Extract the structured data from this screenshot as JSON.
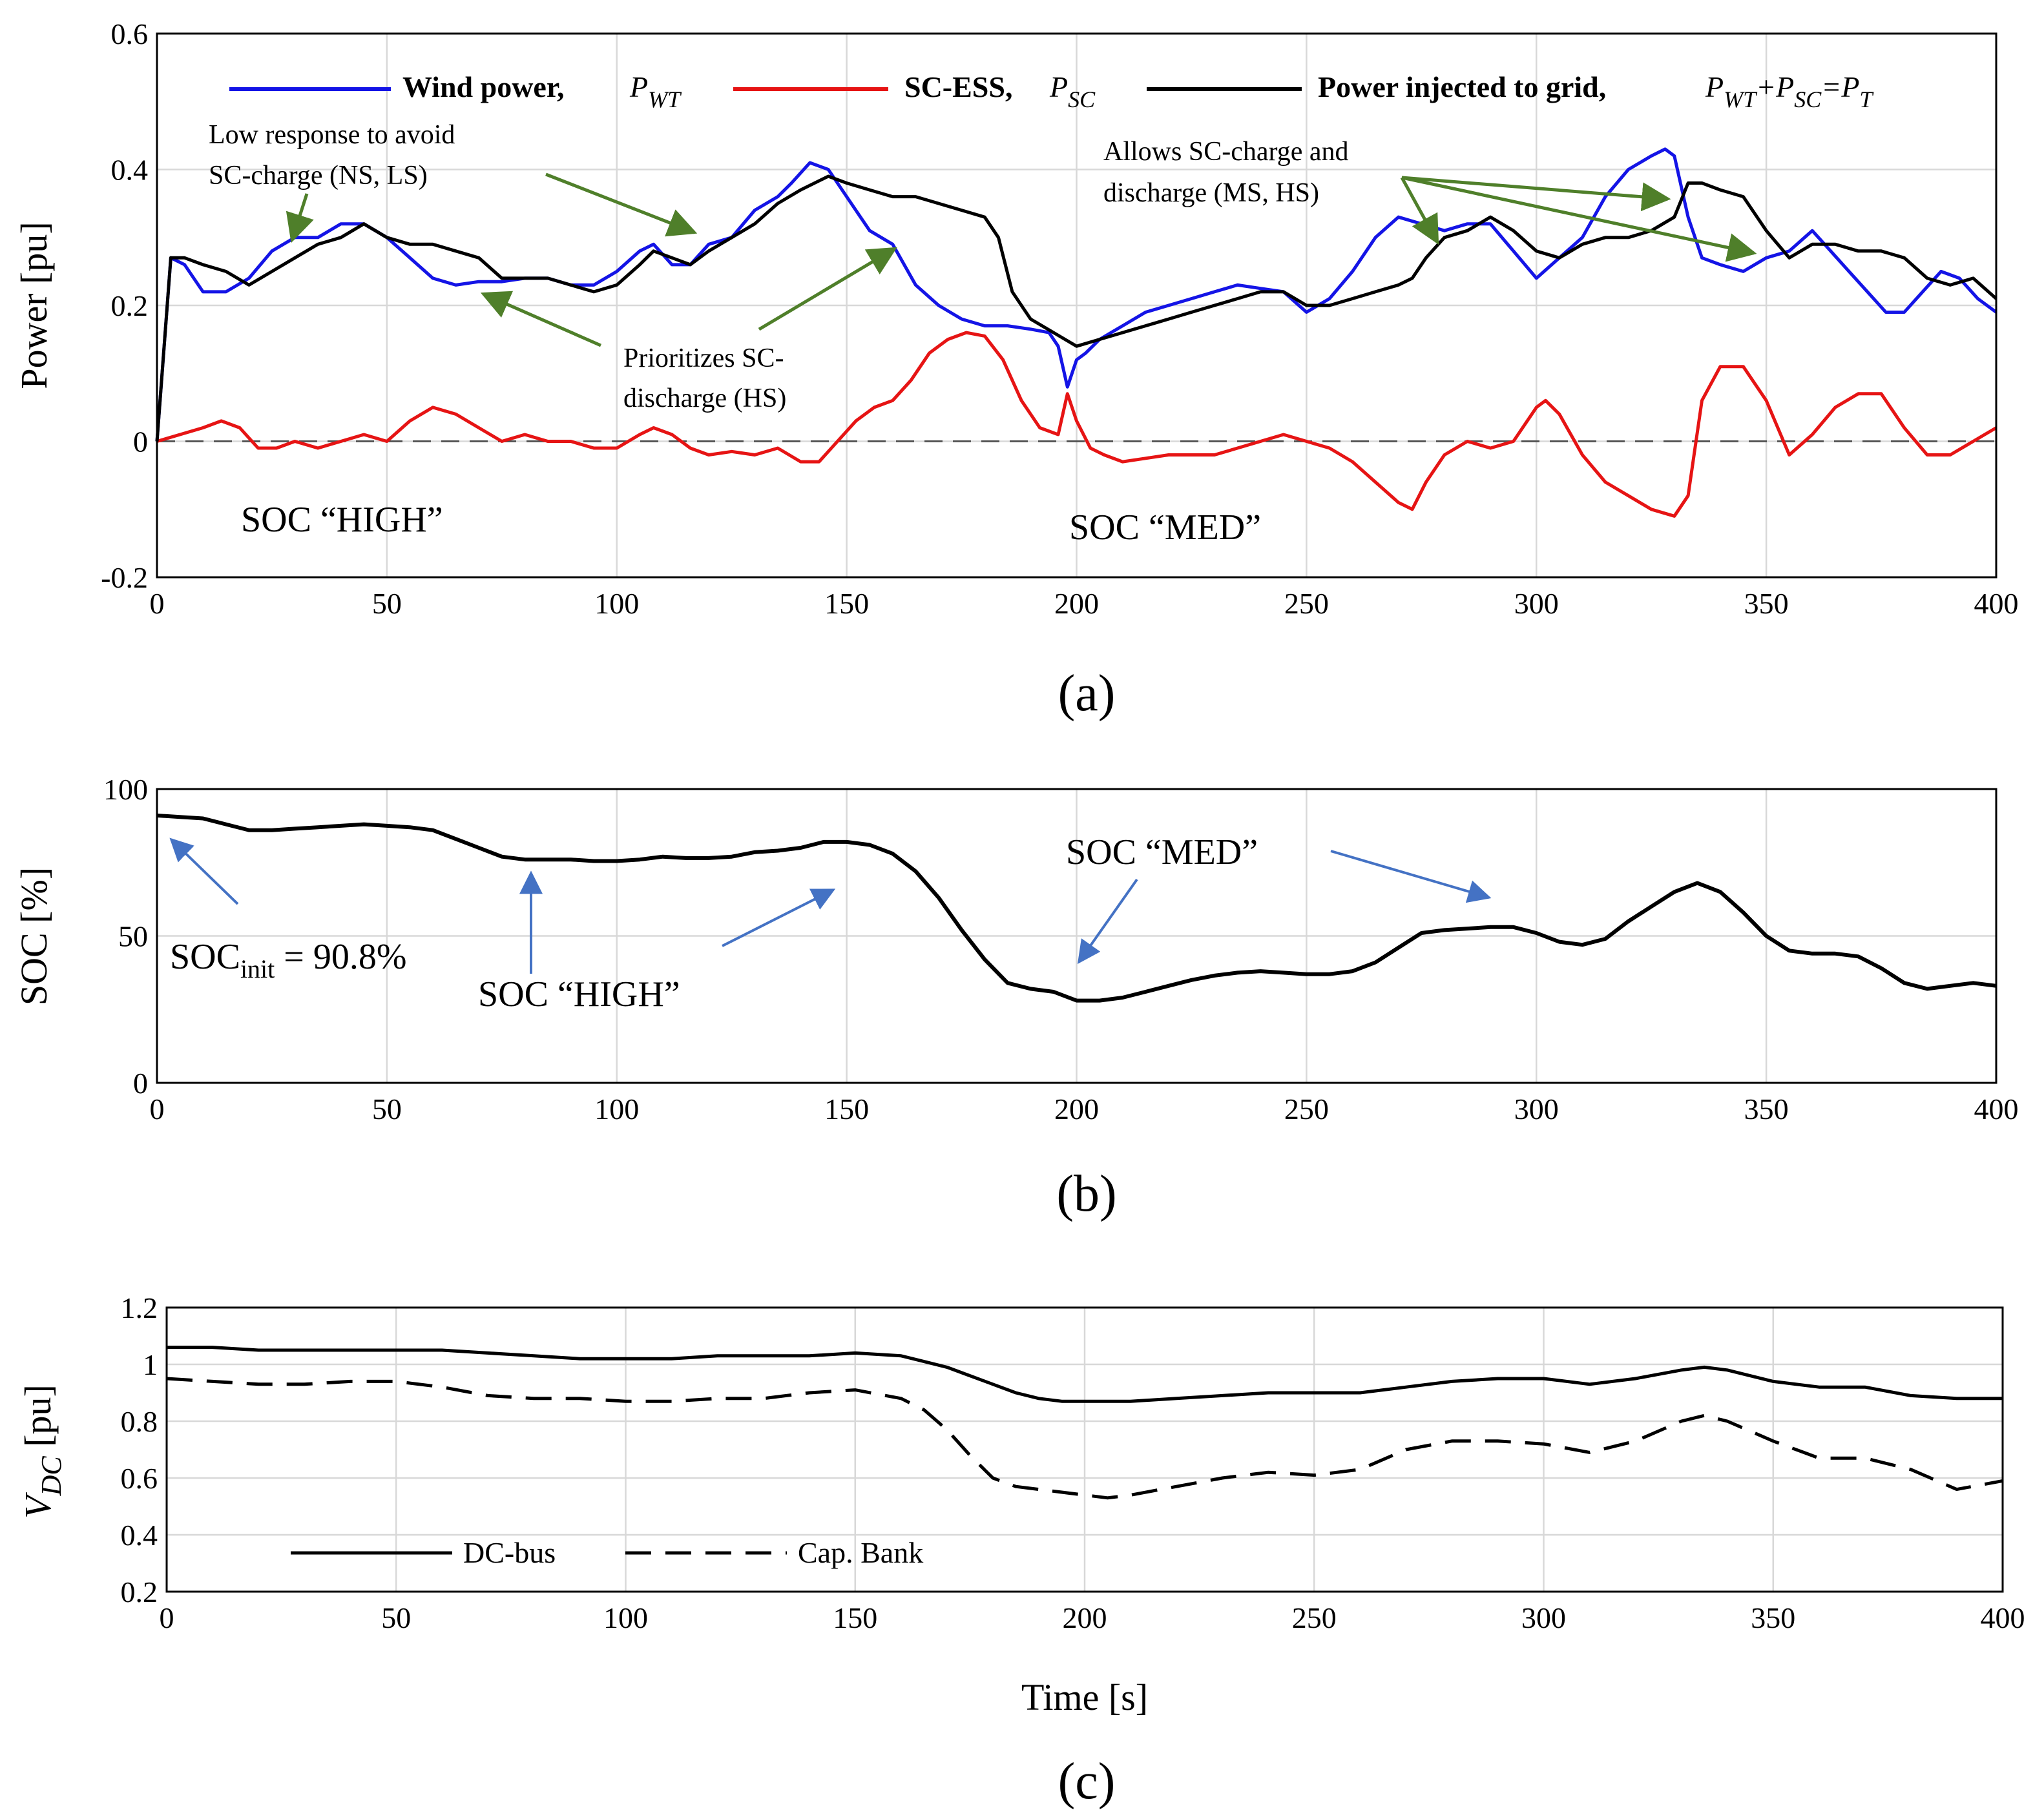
{
  "colors": {
    "wind": "#1414e6",
    "sc": "#e61414",
    "grid_injected": "#000000",
    "arrow_green": "#4f7f2a",
    "arrow_blue": "#4472c4",
    "gridline": "#d8d8d8"
  },
  "panel_a": {
    "caption": "(a)",
    "ylabel": "Power [pu]",
    "xticks": [
      "0",
      "50",
      "100",
      "150",
      "200",
      "250",
      "300",
      "350",
      "400"
    ],
    "yticks": [
      "-0.2",
      "0",
      "0.2",
      "0.4",
      "0.6"
    ],
    "legend": {
      "wind": {
        "label": "Wind power,",
        "sym": "P",
        "sub": "WT"
      },
      "sc": {
        "label": "SC-ESS,",
        "sym": "P",
        "sub": "SC"
      },
      "total": {
        "label": "Power injected to grid,",
        "eq": [
          "P",
          "WT",
          "+P",
          "SC",
          "=P",
          "T"
        ]
      }
    },
    "annotations": {
      "low_response": [
        "Low response to  avoid",
        "SC-charge (NS, LS)"
      ],
      "prioritizes": [
        "Prioritizes SC-",
        "discharge (HS)"
      ],
      "allows": [
        "Allows SC-charge and",
        "discharge (MS, HS)"
      ],
      "soc_high": "SOC “HIGH”",
      "soc_med": "SOC “MED”"
    }
  },
  "panel_b": {
    "caption": "(b)",
    "ylabel": "SOC [%]",
    "xticks": [
      "0",
      "50",
      "100",
      "150",
      "200",
      "250",
      "300",
      "350",
      "400"
    ],
    "yticks": [
      "0",
      "50",
      "100"
    ],
    "annotations": {
      "soc_init_main": "SOC",
      "soc_init_sub": "init",
      "soc_init_val": " = 90.8%",
      "soc_high": "SOC “HIGH”",
      "soc_med": "SOC “MED”"
    }
  },
  "panel_c": {
    "caption": "(c)",
    "ylabel_sym": "V",
    "ylabel_sub": "DC",
    "ylabel_unit": " [pu]",
    "xlabel": "Time [s]",
    "xticks": [
      "0",
      "50",
      "100",
      "150",
      "200",
      "250",
      "300",
      "350",
      "400"
    ],
    "yticks": [
      "0.2",
      "0.4",
      "0.6",
      "0.8",
      "1",
      "1.2"
    ],
    "legend": {
      "dcbus": "DC-bus",
      "capbank": "Cap. Bank"
    }
  },
  "chart_data": [
    {
      "type": "line",
      "title": "",
      "xlabel": "",
      "ylabel": "Power [pu]",
      "xlim": [
        0,
        400
      ],
      "ylim": [
        -0.2,
        0.6
      ],
      "grid": true,
      "legend_position": "top",
      "series": [
        {
          "name": "Wind power, P_WT",
          "x": [
            0,
            3,
            6,
            10,
            15,
            20,
            25,
            30,
            35,
            40,
            45,
            50,
            55,
            60,
            65,
            70,
            75,
            80,
            85,
            90,
            95,
            100,
            105,
            108,
            112,
            116,
            120,
            125,
            130,
            135,
            138,
            142,
            146,
            150,
            155,
            160,
            165,
            170,
            175,
            180,
            185,
            190,
            194,
            196,
            198,
            200,
            202,
            205,
            210,
            215,
            220,
            225,
            230,
            235,
            240,
            245,
            250,
            255,
            260,
            265,
            270,
            275,
            280,
            285,
            290,
            295,
            300,
            305,
            310,
            315,
            320,
            325,
            328,
            330,
            333,
            336,
            340,
            345,
            350,
            355,
            360,
            364,
            368,
            372,
            376,
            380,
            384,
            388,
            392,
            396,
            400
          ],
          "y": [
            0,
            0.27,
            0.26,
            0.22,
            0.22,
            0.24,
            0.28,
            0.3,
            0.3,
            0.32,
            0.32,
            0.3,
            0.27,
            0.24,
            0.23,
            0.235,
            0.235,
            0.24,
            0.24,
            0.23,
            0.23,
            0.25,
            0.28,
            0.29,
            0.26,
            0.26,
            0.29,
            0.3,
            0.34,
            0.36,
            0.38,
            0.41,
            0.4,
            0.36,
            0.31,
            0.29,
            0.23,
            0.2,
            0.18,
            0.17,
            0.17,
            0.165,
            0.16,
            0.14,
            0.08,
            0.12,
            0.13,
            0.15,
            0.17,
            0.19,
            0.2,
            0.21,
            0.22,
            0.23,
            0.225,
            0.22,
            0.19,
            0.21,
            0.25,
            0.3,
            0.33,
            0.32,
            0.31,
            0.32,
            0.32,
            0.28,
            0.24,
            0.27,
            0.3,
            0.36,
            0.4,
            0.42,
            0.43,
            0.42,
            0.33,
            0.27,
            0.26,
            0.25,
            0.27,
            0.28,
            0.31,
            0.28,
            0.25,
            0.22,
            0.19,
            0.19,
            0.22,
            0.25,
            0.24,
            0.21,
            0.19
          ]
        },
        {
          "name": "SC-ESS, P_SC",
          "x": [
            0,
            5,
            10,
            14,
            18,
            22,
            26,
            30,
            35,
            40,
            45,
            50,
            55,
            60,
            65,
            70,
            75,
            80,
            85,
            90,
            95,
            100,
            105,
            108,
            112,
            116,
            120,
            125,
            130,
            135,
            140,
            144,
            148,
            152,
            156,
            160,
            164,
            168,
            172,
            176,
            180,
            184,
            188,
            192,
            196,
            198,
            200,
            203,
            206,
            210,
            215,
            220,
            225,
            230,
            235,
            240,
            245,
            250,
            255,
            260,
            265,
            270,
            273,
            276,
            280,
            285,
            290,
            295,
            300,
            302,
            305,
            310,
            315,
            320,
            325,
            330,
            333,
            336,
            340,
            345,
            350,
            355,
            360,
            365,
            370,
            375,
            380,
            385,
            390,
            395,
            400
          ],
          "y": [
            0,
            0.01,
            0.02,
            0.03,
            0.02,
            -0.01,
            -0.01,
            0,
            -0.01,
            0,
            0.01,
            0.0,
            0.03,
            0.05,
            0.04,
            0.02,
            0.0,
            0.01,
            0.0,
            0.0,
            -0.01,
            -0.01,
            0.01,
            0.02,
            0.01,
            -0.01,
            -0.02,
            -0.015,
            -0.02,
            -0.01,
            -0.03,
            -0.03,
            0.0,
            0.03,
            0.05,
            0.06,
            0.09,
            0.13,
            0.15,
            0.16,
            0.155,
            0.12,
            0.06,
            0.02,
            0.01,
            0.07,
            0.03,
            -0.01,
            -0.02,
            -0.03,
            -0.025,
            -0.02,
            -0.02,
            -0.02,
            -0.01,
            0.0,
            0.01,
            0.0,
            -0.01,
            -0.03,
            -0.06,
            -0.09,
            -0.1,
            -0.06,
            -0.02,
            0.0,
            -0.01,
            0.0,
            0.05,
            0.06,
            0.04,
            -0.02,
            -0.06,
            -0.08,
            -0.1,
            -0.11,
            -0.08,
            0.06,
            0.11,
            0.11,
            0.06,
            -0.02,
            0.01,
            0.05,
            0.07,
            0.07,
            0.02,
            -0.02,
            -0.02,
            0.0,
            0.02
          ]
        },
        {
          "name": "Power injected to grid, P_WT+P_SC=P_T",
          "x": [
            0,
            3,
            6,
            10,
            15,
            20,
            25,
            30,
            35,
            40,
            45,
            50,
            55,
            60,
            65,
            70,
            75,
            80,
            85,
            90,
            95,
            100,
            105,
            108,
            112,
            116,
            120,
            125,
            130,
            135,
            140,
            146,
            150,
            155,
            160,
            165,
            170,
            175,
            180,
            183,
            186,
            190,
            195,
            200,
            205,
            210,
            215,
            220,
            225,
            230,
            235,
            240,
            245,
            250,
            255,
            260,
            265,
            270,
            273,
            276,
            280,
            285,
            290,
            295,
            300,
            305,
            310,
            315,
            320,
            325,
            330,
            333,
            336,
            340,
            345,
            350,
            355,
            360,
            365,
            370,
            375,
            380,
            385,
            390,
            395,
            400
          ],
          "y": [
            0,
            0.27,
            0.27,
            0.26,
            0.25,
            0.23,
            0.25,
            0.27,
            0.29,
            0.3,
            0.32,
            0.3,
            0.29,
            0.29,
            0.28,
            0.27,
            0.24,
            0.24,
            0.24,
            0.23,
            0.22,
            0.23,
            0.26,
            0.28,
            0.27,
            0.26,
            0.28,
            0.3,
            0.32,
            0.35,
            0.37,
            0.39,
            0.38,
            0.37,
            0.36,
            0.36,
            0.35,
            0.34,
            0.33,
            0.3,
            0.22,
            0.18,
            0.16,
            0.14,
            0.15,
            0.16,
            0.17,
            0.18,
            0.19,
            0.2,
            0.21,
            0.22,
            0.22,
            0.2,
            0.2,
            0.21,
            0.22,
            0.23,
            0.24,
            0.27,
            0.3,
            0.31,
            0.33,
            0.31,
            0.28,
            0.27,
            0.29,
            0.3,
            0.3,
            0.31,
            0.33,
            0.38,
            0.38,
            0.37,
            0.36,
            0.31,
            0.27,
            0.29,
            0.29,
            0.28,
            0.28,
            0.27,
            0.24,
            0.23,
            0.24,
            0.21
          ]
        }
      ]
    },
    {
      "type": "line",
      "title": "",
      "xlabel": "",
      "ylabel": "SOC [%]",
      "xlim": [
        0,
        400
      ],
      "ylim": [
        0,
        100
      ],
      "grid": true,
      "series": [
        {
          "name": "",
          "x": [
            0,
            5,
            10,
            15,
            20,
            25,
            30,
            35,
            40,
            45,
            50,
            55,
            60,
            65,
            70,
            75,
            80,
            85,
            90,
            95,
            100,
            105,
            110,
            115,
            120,
            125,
            130,
            135,
            140,
            145,
            150,
            155,
            160,
            165,
            170,
            175,
            180,
            185,
            190,
            195,
            200,
            205,
            210,
            215,
            220,
            225,
            230,
            235,
            240,
            245,
            250,
            255,
            260,
            265,
            270,
            275,
            280,
            285,
            290,
            295,
            300,
            305,
            310,
            315,
            320,
            325,
            330,
            335,
            340,
            345,
            350,
            355,
            360,
            365,
            370,
            375,
            380,
            385,
            390,
            395,
            400
          ],
          "y": [
            91,
            90.5,
            90,
            88,
            86,
            86,
            86.5,
            87,
            87.5,
            88,
            87.5,
            87,
            86,
            83,
            80,
            77,
            76,
            76,
            76,
            75.5,
            75.5,
            76,
            77,
            76.5,
            76.5,
            77,
            78.5,
            79,
            80,
            82,
            82,
            81,
            78,
            72,
            63,
            52,
            42,
            34,
            32,
            31,
            28,
            28,
            29,
            31,
            33,
            35,
            36.5,
            37.5,
            38,
            37.5,
            37,
            37,
            38,
            41,
            46,
            51,
            52,
            52.5,
            53,
            53,
            51,
            48,
            47,
            49,
            55,
            60,
            65,
            68,
            65,
            58,
            50,
            45,
            44,
            44,
            43,
            39,
            34,
            32,
            33,
            34,
            33
          ]
        }
      ]
    },
    {
      "type": "line",
      "title": "",
      "xlabel": "Time [s]",
      "ylabel": "V_DC [pu]",
      "xlim": [
        0,
        400
      ],
      "ylim": [
        0.2,
        1.2
      ],
      "grid": true,
      "legend_position": "bottom-left",
      "series": [
        {
          "name": "DC-bus",
          "x": [
            0,
            10,
            20,
            30,
            40,
            50,
            60,
            70,
            80,
            90,
            100,
            110,
            120,
            130,
            140,
            150,
            160,
            165,
            170,
            175,
            180,
            185,
            190,
            195,
            200,
            210,
            220,
            230,
            240,
            250,
            260,
            270,
            280,
            290,
            300,
            310,
            320,
            330,
            335,
            340,
            350,
            360,
            370,
            380,
            390,
            400
          ],
          "y": [
            1.06,
            1.06,
            1.05,
            1.05,
            1.05,
            1.05,
            1.05,
            1.04,
            1.03,
            1.02,
            1.02,
            1.02,
            1.03,
            1.03,
            1.03,
            1.04,
            1.03,
            1.01,
            0.99,
            0.96,
            0.93,
            0.9,
            0.88,
            0.87,
            0.87,
            0.87,
            0.88,
            0.89,
            0.9,
            0.9,
            0.9,
            0.92,
            0.94,
            0.95,
            0.95,
            0.93,
            0.95,
            0.98,
            0.99,
            0.98,
            0.94,
            0.92,
            0.92,
            0.89,
            0.88,
            0.88
          ]
        },
        {
          "name": "Cap. Bank",
          "x": [
            0,
            10,
            20,
            30,
            40,
            50,
            60,
            70,
            80,
            90,
            100,
            110,
            120,
            130,
            140,
            150,
            160,
            165,
            170,
            175,
            180,
            185,
            190,
            195,
            200,
            205,
            210,
            220,
            230,
            240,
            250,
            260,
            270,
            280,
            290,
            300,
            310,
            320,
            330,
            335,
            340,
            350,
            360,
            370,
            380,
            390,
            400
          ],
          "y": [
            0.95,
            0.94,
            0.93,
            0.93,
            0.94,
            0.94,
            0.92,
            0.89,
            0.88,
            0.88,
            0.87,
            0.87,
            0.88,
            0.88,
            0.9,
            0.91,
            0.88,
            0.84,
            0.77,
            0.68,
            0.6,
            0.57,
            0.56,
            0.55,
            0.54,
            0.53,
            0.54,
            0.57,
            0.6,
            0.62,
            0.61,
            0.63,
            0.7,
            0.73,
            0.73,
            0.72,
            0.69,
            0.73,
            0.8,
            0.82,
            0.8,
            0.73,
            0.67,
            0.67,
            0.63,
            0.56,
            0.59
          ]
        }
      ]
    }
  ]
}
